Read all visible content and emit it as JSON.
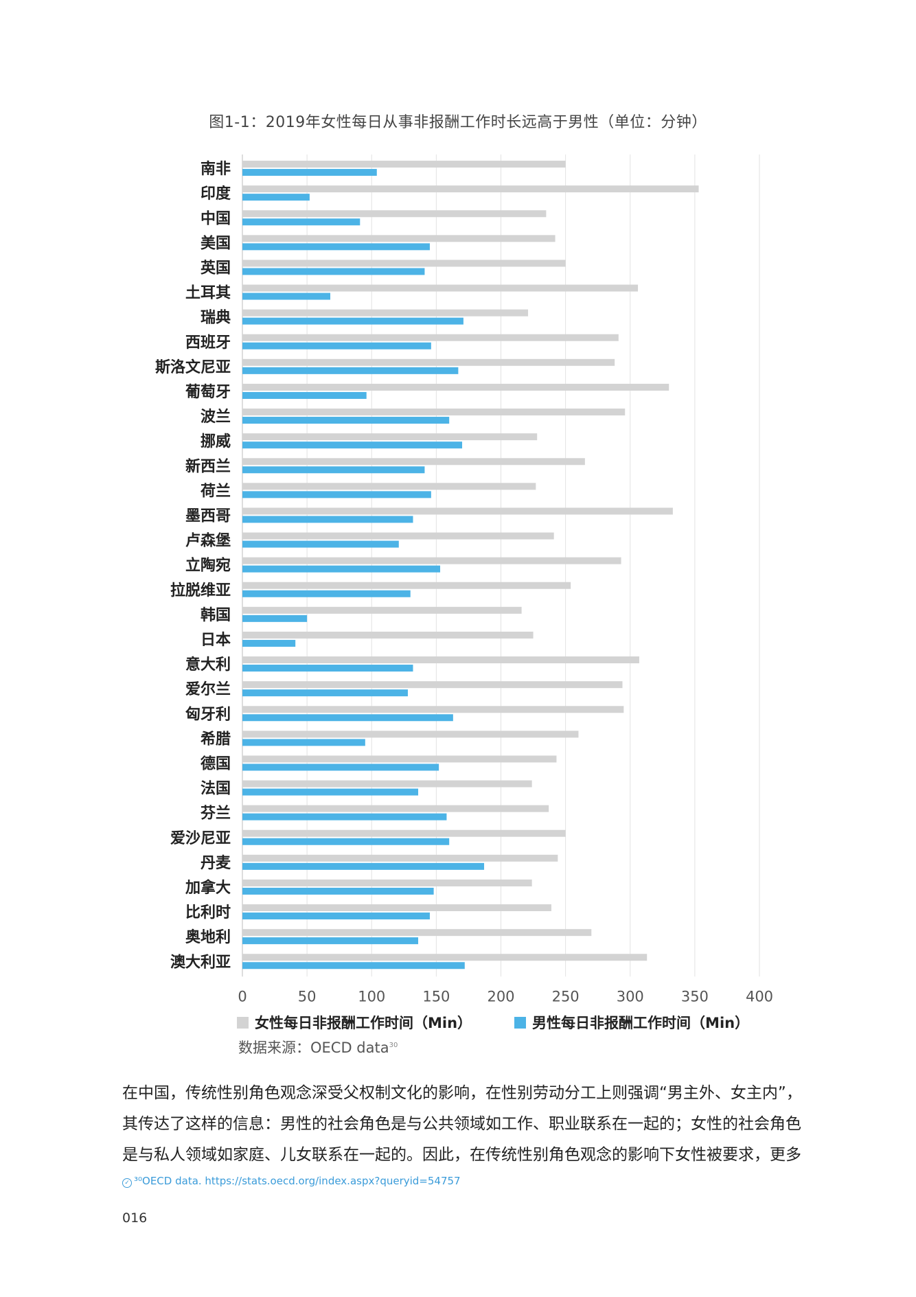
{
  "chart_data": {
    "type": "bar",
    "orientation": "horizontal",
    "title": "图1-1：2019年女性每日从事非报酬工作时长远高于男性（单位：分钟）",
    "categories": [
      "南非",
      "印度",
      "中国",
      "美国",
      "英国",
      "土耳其",
      "瑞典",
      "西班牙",
      "斯洛文尼亚",
      "葡萄牙",
      "波兰",
      "挪威",
      "新西兰",
      "荷兰",
      "墨西哥",
      "卢森堡",
      "立陶宛",
      "拉脱维亚",
      "韩国",
      "日本",
      "意大利",
      "爱尔兰",
      "匈牙利",
      "希腊",
      "德国",
      "法国",
      "芬兰",
      "爱沙尼亚",
      "丹麦",
      "加拿大",
      "比利时",
      "奥地利",
      "澳大利亚"
    ],
    "series": [
      {
        "name": "女性每日非报酬工作时间（Min）",
        "color": "#d3d3d3",
        "values": [
          250,
          353,
          235,
          242,
          250,
          306,
          221,
          291,
          288,
          330,
          296,
          228,
          265,
          227,
          333,
          241,
          293,
          254,
          216,
          225,
          307,
          294,
          295,
          260,
          243,
          224,
          237,
          250,
          244,
          224,
          239,
          270,
          313
        ]
      },
      {
        "name": "男性每日非报酬工作时间（Min）",
        "color": "#4cb3e6",
        "values": [
          104,
          52,
          91,
          145,
          141,
          68,
          171,
          146,
          167,
          96,
          160,
          170,
          141,
          146,
          132,
          121,
          153,
          130,
          50,
          41,
          132,
          128,
          163,
          95,
          152,
          136,
          158,
          160,
          187,
          148,
          145,
          136,
          172
        ]
      }
    ],
    "xlim": [
      0,
      400
    ],
    "xticks": [
      0,
      50,
      100,
      150,
      200,
      250,
      300,
      350,
      400
    ],
    "grid": true,
    "legend_position": "bottom"
  },
  "legend": {
    "female": "女性每日非报酬工作时间（Min）",
    "male": "男性每日非报酬工作时间（Min）"
  },
  "source": {
    "label": "数据来源：OECD data",
    "sup": "30"
  },
  "body_lines": [
    "在中国，传统性别角色观念深受父权制文化的影响，在性别劳动分工上则强调“男主外、女主内”，",
    "其传达了这样的信息：男性的社会角色是与公共领域如工作、职业联系在一起的；女性的社会角色",
    "是与私人领域如家庭、儿女联系在一起的。因此，在传统性别角色观念的影响下女性被要求，更多"
  ],
  "footnote": "³⁰OECD data. https://stats.oecd.org/index.aspx?queryid=54757",
  "page_number": "016"
}
